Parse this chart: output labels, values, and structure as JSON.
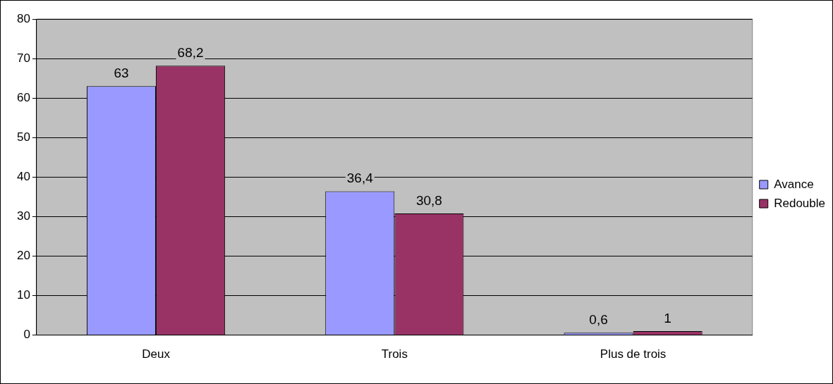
{
  "chart_data": {
    "type": "bar",
    "categories": [
      "Deux",
      "Trois",
      "Plus de trois"
    ],
    "series": [
      {
        "name": "Avance",
        "color": "#9999ff",
        "values": [
          63,
          36.4,
          0.6
        ],
        "value_labels": [
          "63",
          "36,4",
          "0,6"
        ]
      },
      {
        "name": "Redouble",
        "color": "#993366",
        "values": [
          68.2,
          30.8,
          1
        ],
        "value_labels": [
          "68,2",
          "30,8",
          "1"
        ]
      }
    ],
    "ylim": [
      0,
      80
    ],
    "yticks": [
      0,
      10,
      20,
      30,
      40,
      50,
      60,
      70,
      80
    ],
    "grid": "y",
    "legend": "right"
  }
}
